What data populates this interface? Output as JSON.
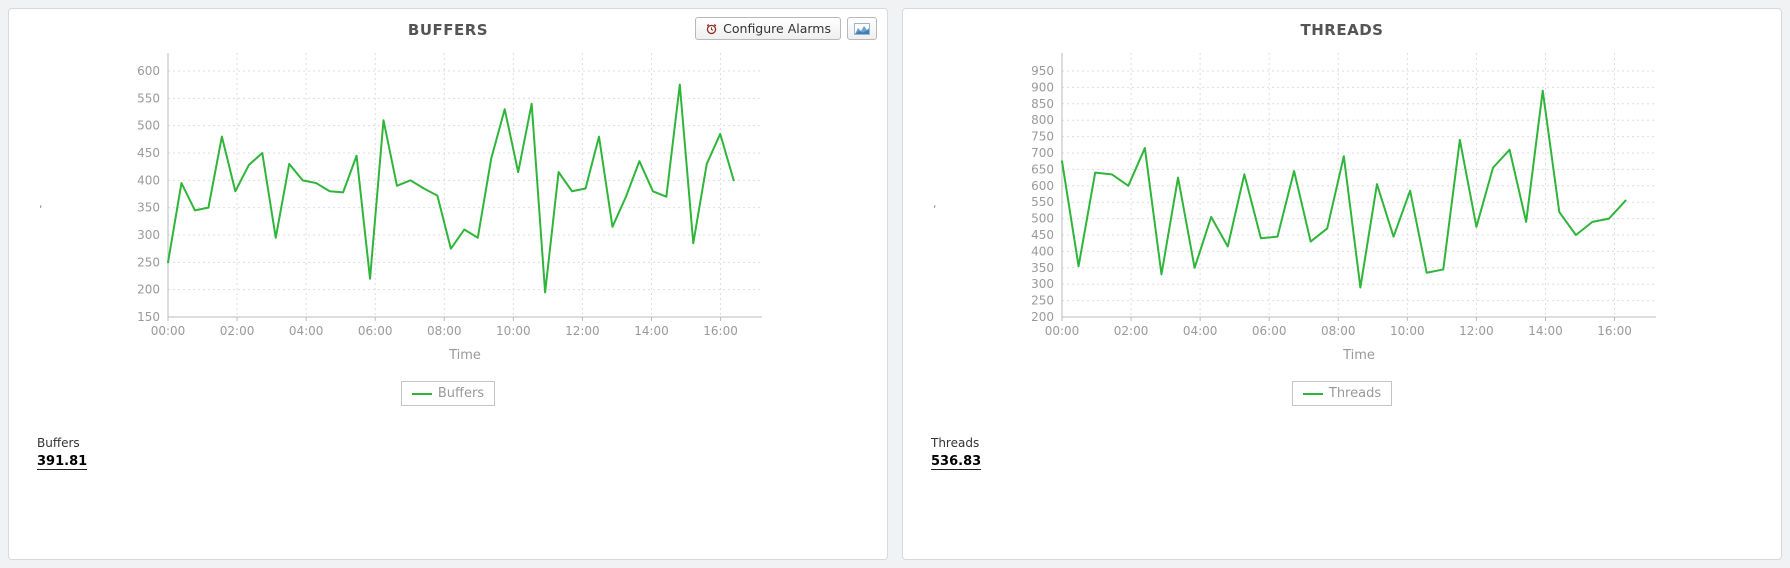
{
  "page": {
    "background": "#f1f2f3"
  },
  "toolbar": {
    "configure_alarms_label": "Configure Alarms",
    "alarm_icon": "alarm-clock-icon",
    "chart_button_icon": "area-chart-icon"
  },
  "colors": {
    "line_green": "#2fb53a",
    "axis_text": "#9a9a9a",
    "grid": "#dddddd",
    "title_text": "#545454"
  },
  "panels": [
    {
      "title": "BUFFERS",
      "legend_label": "Buffers",
      "y_axis_mark": ",",
      "metric_label": "Buffers",
      "metric_value": "391.81"
    },
    {
      "title": "THREADS",
      "legend_label": "Threads",
      "y_axis_mark": ",",
      "metric_label": "Threads",
      "metric_value": "536.83"
    }
  ],
  "chart_data": [
    {
      "type": "line",
      "title": "BUFFERS",
      "xlabel": "Time",
      "ylabel": "",
      "grid": true,
      "legend": [
        "Buffers"
      ],
      "legend_position": "bottom",
      "xlim_hours": [
        0,
        17.2
      ],
      "ylim": [
        150,
        600
      ],
      "y_ticks": [
        150,
        200,
        250,
        300,
        350,
        400,
        450,
        500,
        550,
        600
      ],
      "x_tick_hours": [
        0,
        2,
        4,
        6,
        8,
        10,
        12,
        14,
        16
      ],
      "x_tick_labels": [
        "00:00",
        "02:00",
        "04:00",
        "06:00",
        "08:00",
        "10:00",
        "12:00",
        "14:00",
        "16:00"
      ],
      "series": [
        {
          "name": "Buffers",
          "color": "#2fb53a",
          "x_start_hour": 0,
          "x_step_hours": 0.39,
          "values": [
            250,
            395,
            345,
            350,
            480,
            380,
            428,
            450,
            295,
            430,
            400,
            395,
            380,
            378,
            445,
            220,
            510,
            390,
            400,
            385,
            372,
            275,
            310,
            295,
            440,
            530,
            415,
            540,
            195,
            415,
            380,
            385,
            480,
            315,
            370,
            435,
            380,
            370,
            575,
            285,
            430,
            485,
            400
          ]
        }
      ]
    },
    {
      "type": "line",
      "title": "THREADS",
      "xlabel": "Time",
      "ylabel": "",
      "grid": true,
      "legend": [
        "Threads"
      ],
      "legend_position": "bottom",
      "xlim_hours": [
        0,
        17.2
      ],
      "ylim": [
        200,
        950
      ],
      "y_ticks": [
        200,
        250,
        300,
        350,
        400,
        450,
        500,
        550,
        600,
        650,
        700,
        750,
        800,
        850,
        900,
        950
      ],
      "x_tick_hours": [
        0,
        2,
        4,
        6,
        8,
        10,
        12,
        14,
        16
      ],
      "x_tick_labels": [
        "00:00",
        "02:00",
        "04:00",
        "06:00",
        "08:00",
        "10:00",
        "12:00",
        "14:00",
        "16:00"
      ],
      "series": [
        {
          "name": "Threads",
          "color": "#2fb53a",
          "x_start_hour": 0,
          "x_step_hours": 0.48,
          "values": [
            675,
            355,
            640,
            635,
            600,
            715,
            330,
            625,
            350,
            505,
            415,
            635,
            440,
            445,
            645,
            430,
            470,
            690,
            290,
            605,
            445,
            585,
            335,
            345,
            740,
            475,
            655,
            710,
            490,
            890,
            520,
            450,
            490,
            500,
            555
          ]
        }
      ]
    }
  ]
}
